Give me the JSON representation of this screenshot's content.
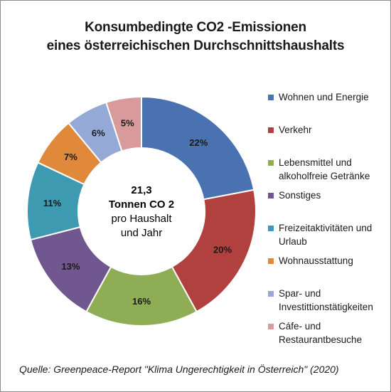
{
  "title_line1": "Konsumbedingte CO2 -Emissionen",
  "title_line2": "eines österreichischen Durchschnittshaushalts",
  "center": {
    "line1": "21,3",
    "line2": "Tonnen CO 2",
    "line3": "pro Haushalt",
    "line4": "und Jahr"
  },
  "source": "Quelle: Greenpeace-Report \"Klima Ungerechtigkeit in Österreich\" (2020)",
  "chart_data": {
    "type": "pie",
    "donut": true,
    "categories": [
      "Wohnen und Energie",
      "Verkehr",
      "Lebensmittel und alkoholfreie Getränke",
      "Sonstiges",
      "Freizeitaktivitäten und Urlaub",
      "Wohnausstattung",
      "Spar- und Investittionstätigkeiten",
      "Cáfe- und Restaurantbesuche"
    ],
    "legend_lines": [
      [
        "Wohnen und Energie"
      ],
      [
        "Verkehr"
      ],
      [
        "Lebensmittel und",
        "alkoholfreie Getränke"
      ],
      [
        "Sonstiges"
      ],
      [
        "Freizeitaktivitäten und",
        "Urlaub"
      ],
      [
        "Wohnausstattung"
      ],
      [
        "Spar- und",
        "Investittionstätigkeiten"
      ],
      [
        "Cáfe- und",
        "Restaurantbesuche"
      ]
    ],
    "values": [
      22,
      20,
      16,
      13,
      11,
      7,
      6,
      5
    ],
    "labels": [
      "22%",
      "20%",
      "16%",
      "13%",
      "11%",
      "7%",
      "6%",
      "5%"
    ],
    "colors": [
      "#4a72b0",
      "#b0413e",
      "#8fad55",
      "#70578f",
      "#3e9ab0",
      "#e0893a",
      "#95a9d6",
      "#d89a9a"
    ],
    "legend_position": "right"
  }
}
